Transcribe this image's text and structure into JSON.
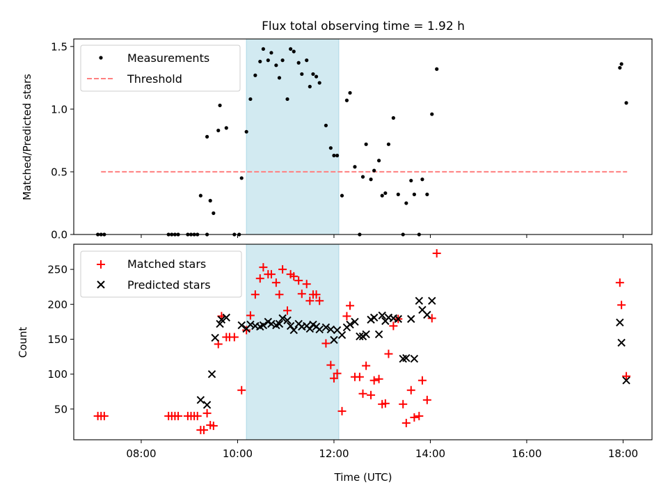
{
  "title": "Flux total observing time = 1.92 h",
  "chart_data": [
    {
      "type": "scatter",
      "ylabel": "Matched/Predicted stars",
      "xlim": [
        "06:36",
        "18:36"
      ],
      "ylim": [
        0,
        1.56
      ],
      "yticks": [
        "0.0",
        "0.5",
        "1.0",
        "1.5"
      ],
      "highlight_span": {
        "start": "10:11",
        "end": "12:06",
        "color": "#add8e6"
      },
      "legend": {
        "position": "top-left",
        "entries": [
          "Measurements",
          "Threshold"
        ]
      },
      "threshold": {
        "name": "Threshold",
        "value": 0.5,
        "x_start": "07:10",
        "x_end": "18:05",
        "color": "#ff7f7f",
        "style": "dashed"
      },
      "series": [
        {
          "name": "Measurements",
          "color": "#000000",
          "marker": "dot",
          "points": [
            [
              "07:06",
              0
            ],
            [
              "07:10",
              0
            ],
            [
              "07:14",
              0
            ],
            [
              "08:34",
              0
            ],
            [
              "08:38",
              0
            ],
            [
              "08:42",
              0
            ],
            [
              "08:46",
              0
            ],
            [
              "08:58",
              0
            ],
            [
              "09:02",
              0
            ],
            [
              "09:06",
              0
            ],
            [
              "09:10",
              0
            ],
            [
              "09:22",
              0
            ],
            [
              "09:56",
              0
            ],
            [
              "10:02",
              0
            ],
            [
              "09:14",
              0.31
            ],
            [
              "09:22",
              0.78
            ],
            [
              "09:26",
              0.27
            ],
            [
              "09:30",
              0.17
            ],
            [
              "09:36",
              0.83
            ],
            [
              "09:38",
              1.03
            ],
            [
              "09:46",
              0.85
            ],
            [
              "10:05",
              0.45
            ],
            [
              "10:11",
              0.82
            ],
            [
              "10:16",
              1.08
            ],
            [
              "10:22",
              1.27
            ],
            [
              "10:28",
              1.38
            ],
            [
              "10:32",
              1.48
            ],
            [
              "10:38",
              1.39
            ],
            [
              "10:42",
              1.45
            ],
            [
              "10:48",
              1.35
            ],
            [
              "10:52",
              1.25
            ],
            [
              "10:56",
              1.39
            ],
            [
              "11:02",
              1.08
            ],
            [
              "11:06",
              1.48
            ],
            [
              "11:10",
              1.46
            ],
            [
              "11:16",
              1.37
            ],
            [
              "11:20",
              1.28
            ],
            [
              "11:26",
              1.39
            ],
            [
              "11:30",
              1.18
            ],
            [
              "11:34",
              1.28
            ],
            [
              "11:38",
              1.26
            ],
            [
              "11:42",
              1.21
            ],
            [
              "11:50",
              0.87
            ],
            [
              "11:56",
              0.69
            ],
            [
              "12:00",
              0.63
            ],
            [
              "12:04",
              0.63
            ],
            [
              "12:10",
              0.31
            ],
            [
              "12:16",
              1.07
            ],
            [
              "12:20",
              1.13
            ],
            [
              "12:26",
              0.54
            ],
            [
              "12:32",
              0
            ],
            [
              "12:36",
              0.46
            ],
            [
              "12:40",
              0.72
            ],
            [
              "12:46",
              0.44
            ],
            [
              "12:50",
              0.51
            ],
            [
              "12:56",
              0.59
            ],
            [
              "13:00",
              0.31
            ],
            [
              "13:04",
              0.33
            ],
            [
              "13:08",
              0.72
            ],
            [
              "13:14",
              0.93
            ],
            [
              "13:20",
              0.32
            ],
            [
              "13:26",
              0
            ],
            [
              "13:30",
              0.25
            ],
            [
              "13:36",
              0.43
            ],
            [
              "13:40",
              0.32
            ],
            [
              "13:46",
              0
            ],
            [
              "13:50",
              0.44
            ],
            [
              "13:56",
              0.32
            ],
            [
              "14:02",
              0.96
            ],
            [
              "14:08",
              1.32
            ],
            [
              "17:56",
              1.33
            ],
            [
              "17:58",
              1.36
            ],
            [
              "18:04",
              1.05
            ]
          ]
        }
      ]
    },
    {
      "type": "scatter",
      "xlabel": "Time (UTC)",
      "ylabel": "Count",
      "xlim": [
        "06:36",
        "18:36"
      ],
      "ylim": [
        6,
        286
      ],
      "xticks": [
        "08:00",
        "10:00",
        "12:00",
        "14:00",
        "16:00",
        "18:00"
      ],
      "yticks": [
        "50",
        "100",
        "150",
        "200",
        "250"
      ],
      "highlight_span": {
        "start": "10:11",
        "end": "12:06",
        "color": "#add8e6"
      },
      "legend": {
        "position": "top-left",
        "entries": [
          "Matched stars",
          "Predicted stars"
        ]
      },
      "series": [
        {
          "name": "Matched stars",
          "color": "#ff0000",
          "marker": "plus",
          "points": [
            [
              "07:06",
              40
            ],
            [
              "07:10",
              40
            ],
            [
              "07:14",
              40
            ],
            [
              "08:34",
              40
            ],
            [
              "08:38",
              40
            ],
            [
              "08:42",
              40
            ],
            [
              "08:46",
              40
            ],
            [
              "08:58",
              40
            ],
            [
              "09:02",
              40
            ],
            [
              "09:06",
              40
            ],
            [
              "09:10",
              40
            ],
            [
              "09:14",
              20
            ],
            [
              "09:18",
              20
            ],
            [
              "09:22",
              44
            ],
            [
              "09:26",
              27
            ],
            [
              "09:30",
              26
            ],
            [
              "09:36",
              143
            ],
            [
              "09:40",
              183
            ],
            [
              "09:46",
              153
            ],
            [
              "09:50",
              153
            ],
            [
              "09:56",
              153
            ],
            [
              "10:05",
              77
            ],
            [
              "10:11",
              163
            ],
            [
              "10:16",
              184
            ],
            [
              "10:22",
              214
            ],
            [
              "10:28",
              237
            ],
            [
              "10:32",
              253
            ],
            [
              "10:38",
              243
            ],
            [
              "10:42",
              243
            ],
            [
              "10:48",
              231
            ],
            [
              "10:52",
              214
            ],
            [
              "10:56",
              250
            ],
            [
              "11:02",
              191
            ],
            [
              "11:06",
              243
            ],
            [
              "11:10",
              240
            ],
            [
              "11:16",
              234
            ],
            [
              "11:20",
              215
            ],
            [
              "11:26",
              229
            ],
            [
              "11:30",
              205
            ],
            [
              "11:34",
              214
            ],
            [
              "11:38",
              214
            ],
            [
              "11:42",
              205
            ],
            [
              "11:50",
              144
            ],
            [
              "11:56",
              113
            ],
            [
              "12:00",
              94
            ],
            [
              "12:04",
              101
            ],
            [
              "12:10",
              47
            ],
            [
              "12:16",
              183
            ],
            [
              "12:20",
              198
            ],
            [
              "12:26",
              96
            ],
            [
              "12:32",
              96
            ],
            [
              "12:36",
              72
            ],
            [
              "12:40",
              112
            ],
            [
              "12:46",
              70
            ],
            [
              "12:50",
              91
            ],
            [
              "12:56",
              93
            ],
            [
              "13:00",
              57
            ],
            [
              "13:04",
              58
            ],
            [
              "13:08",
              129
            ],
            [
              "13:14",
              169
            ],
            [
              "13:20",
              179
            ],
            [
              "13:26",
              57
            ],
            [
              "13:30",
              30
            ],
            [
              "13:36",
              77
            ],
            [
              "13:40",
              38
            ],
            [
              "13:46",
              40
            ],
            [
              "13:50",
              91
            ],
            [
              "13:56",
              63
            ],
            [
              "14:02",
              180
            ],
            [
              "14:08",
              273
            ],
            [
              "17:56",
              231
            ],
            [
              "17:58",
              199
            ],
            [
              "18:04",
              97
            ]
          ]
        },
        {
          "name": "Predicted stars",
          "color": "#000000",
          "marker": "x",
          "points": [
            [
              "09:14",
              63
            ],
            [
              "09:22",
              56
            ],
            [
              "09:28",
              100
            ],
            [
              "09:32",
              152
            ],
            [
              "09:38",
              172
            ],
            [
              "09:40",
              178
            ],
            [
              "09:46",
              181
            ],
            [
              "10:05",
              170
            ],
            [
              "10:11",
              165
            ],
            [
              "10:16",
              171
            ],
            [
              "10:22",
              169
            ],
            [
              "10:28",
              168
            ],
            [
              "10:32",
              170
            ],
            [
              "10:38",
              175
            ],
            [
              "10:42",
              172
            ],
            [
              "10:48",
              170
            ],
            [
              "10:52",
              172
            ],
            [
              "10:56",
              180
            ],
            [
              "11:02",
              177
            ],
            [
              "11:06",
              169
            ],
            [
              "11:10",
              163
            ],
            [
              "11:16",
              172
            ],
            [
              "11:20",
              168
            ],
            [
              "11:26",
              169
            ],
            [
              "11:30",
              165
            ],
            [
              "11:34",
              171
            ],
            [
              "11:38",
              168
            ],
            [
              "11:42",
              164
            ],
            [
              "11:50",
              167
            ],
            [
              "11:56",
              164
            ],
            [
              "12:00",
              149
            ],
            [
              "12:04",
              163
            ],
            [
              "12:10",
              156
            ],
            [
              "12:16",
              167
            ],
            [
              "12:20",
              171
            ],
            [
              "12:26",
              175
            ],
            [
              "12:32",
              154
            ],
            [
              "12:36",
              154
            ],
            [
              "12:40",
              157
            ],
            [
              "12:46",
              178
            ],
            [
              "12:50",
              181
            ],
            [
              "12:56",
              157
            ],
            [
              "13:00",
              184
            ],
            [
              "13:04",
              176
            ],
            [
              "13:08",
              181
            ],
            [
              "13:14",
              180
            ],
            [
              "13:20",
              179
            ],
            [
              "13:26",
              122
            ],
            [
              "13:30",
              123
            ],
            [
              "13:36",
              179
            ],
            [
              "13:40",
              122
            ],
            [
              "13:46",
              205
            ],
            [
              "13:50",
              192
            ],
            [
              "13:56",
              185
            ],
            [
              "14:02",
              205
            ],
            [
              "17:56",
              174
            ],
            [
              "17:58",
              145
            ],
            [
              "18:04",
              91
            ]
          ]
        }
      ]
    }
  ]
}
